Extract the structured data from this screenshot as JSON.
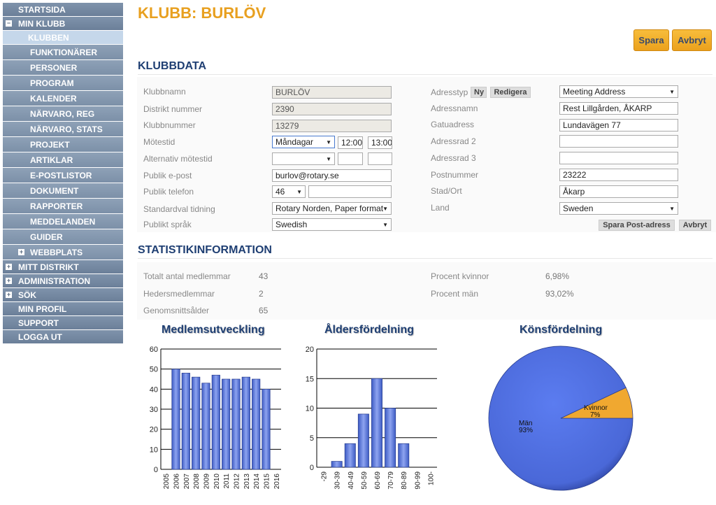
{
  "sidebar": {
    "items": [
      {
        "label": "STARTSIDA",
        "type": "top",
        "toggle": ""
      },
      {
        "label": "MIN KLUBB",
        "type": "top",
        "toggle": "−"
      },
      {
        "label": "KLUBBEN",
        "type": "active",
        "toggle": ""
      },
      {
        "label": "FUNKTIONÄRER",
        "type": "sub",
        "toggle": ""
      },
      {
        "label": "PERSONER",
        "type": "sub",
        "toggle": ""
      },
      {
        "label": "PROGRAM",
        "type": "sub",
        "toggle": ""
      },
      {
        "label": "KALENDER",
        "type": "sub",
        "toggle": ""
      },
      {
        "label": "NÄRVARO, REG",
        "type": "sub",
        "toggle": ""
      },
      {
        "label": "NÄRVARO, STATS",
        "type": "sub",
        "toggle": ""
      },
      {
        "label": "PROJEKT",
        "type": "sub",
        "toggle": ""
      },
      {
        "label": "ARTIKLAR",
        "type": "sub",
        "toggle": ""
      },
      {
        "label": "E-POSTLISTOR",
        "type": "sub",
        "toggle": ""
      },
      {
        "label": "DOKUMENT",
        "type": "sub",
        "toggle": ""
      },
      {
        "label": "RAPPORTER",
        "type": "sub",
        "toggle": ""
      },
      {
        "label": "MEDDELANDEN",
        "type": "sub",
        "toggle": ""
      },
      {
        "label": "GUIDER",
        "type": "sub",
        "toggle": ""
      },
      {
        "label": "WEBBPLATS",
        "type": "sub",
        "toggle": "+"
      },
      {
        "label": "MITT DISTRIKT",
        "type": "top",
        "toggle": "+"
      },
      {
        "label": "ADMINISTRATION",
        "type": "top",
        "toggle": "+"
      },
      {
        "label": "SÖK",
        "type": "top",
        "toggle": "+"
      },
      {
        "label": "MIN PROFIL",
        "type": "top",
        "toggle": ""
      },
      {
        "label": "SUPPORT",
        "type": "top",
        "toggle": ""
      },
      {
        "label": "LOGGA UT",
        "type": "top",
        "toggle": ""
      }
    ]
  },
  "header": {
    "title": "KLUBB: BURLÖV",
    "save_label": "Spara",
    "cancel_label": "Avbryt"
  },
  "klubbdata": {
    "title": "KLUBBDATA",
    "klubbnamn_label": "Klubbnamn",
    "klubbnamn": "BURLÖV",
    "distrikt_label": "Distrikt nummer",
    "distrikt": "2390",
    "klubbnummer_label": "Klubbnummer",
    "klubbnummer": "13279",
    "motestid_label": "Mötestid",
    "motesdag": "Måndagar",
    "mote_start": "12:00",
    "mote_slut": "13:00",
    "alt_motestid_label": "Alternativ mötestid",
    "alt_dag": "",
    "alt_start": "",
    "alt_slut": "",
    "epost_label": "Publik e-post",
    "epost": "burlov@rotary.se",
    "telefon_label": "Publik telefon",
    "telefon_kod": "46",
    "telefon": "",
    "tidning_label": "Standardval tidning",
    "tidning": "Rotary Norden, Paper format",
    "sprak_label": "Publikt språk",
    "sprak": "Swedish"
  },
  "adress": {
    "typ_label": "Adresstyp",
    "ny_label": "Ny",
    "redigera_label": "Redigera",
    "typ": "Meeting Address",
    "namn_label": "Adressnamn",
    "namn": "Rest Lillgården, ÅKARP",
    "gata_label": "Gatuadress",
    "gata": "Lundavägen 77",
    "rad2_label": "Adressrad 2",
    "rad2": "",
    "rad3_label": "Adressrad 3",
    "rad3": "",
    "postnr_label": "Postnummer",
    "postnr": "23222",
    "stad_label": "Stad/Ort",
    "stad": "Åkarp",
    "land_label": "Land",
    "land": "Sweden",
    "spara_label": "Spara Post-adress",
    "avbryt_label": "Avbryt"
  },
  "statistik": {
    "title": "STATISTIKINFORMATION",
    "totalt_label": "Totalt antal medlemmar",
    "totalt": "43",
    "heders_label": "Hedersmedlemmar",
    "heders": "2",
    "alder_label": "Genomsnittsålder",
    "alder": "65",
    "kvinnor_label": "Procent kvinnor",
    "kvinnor": "6,98%",
    "man_label": "Procent män",
    "man": "93,02%"
  },
  "chart_data": [
    {
      "type": "bar",
      "title": "Medlemsutveckling",
      "categories": [
        "2005",
        "2006",
        "2007",
        "2008",
        "2009",
        "2010",
        "2011",
        "2012",
        "2013",
        "2014",
        "2015",
        "2016"
      ],
      "values": [
        null,
        50,
        48,
        46,
        43,
        47,
        45,
        45,
        46,
        45,
        40,
        null
      ],
      "ylim": [
        0,
        60
      ],
      "yticks": [
        0,
        10,
        20,
        30,
        40,
        50,
        60
      ],
      "grid": true,
      "color": "#5b78d6"
    },
    {
      "type": "bar",
      "title": "Åldersfördelning",
      "categories": [
        "-29",
        "30-39",
        "40-49",
        "50-59",
        "60-69",
        "70-79",
        "80-89",
        "90-99",
        "100-"
      ],
      "values": [
        0,
        1,
        4,
        9,
        15,
        10,
        4,
        0,
        0
      ],
      "ylim": [
        0,
        20
      ],
      "yticks": [
        0,
        5,
        10,
        15,
        20
      ],
      "grid": true,
      "color": "#5b78d6"
    },
    {
      "type": "pie",
      "title": "Könsfördelning",
      "slices": [
        {
          "label": "Män",
          "percent_label": "93%",
          "value": 93.02,
          "color": "#4f6fe0"
        },
        {
          "label": "Kvinnor",
          "percent_label": "7%",
          "value": 6.98,
          "color": "#f0a830"
        }
      ]
    }
  ]
}
